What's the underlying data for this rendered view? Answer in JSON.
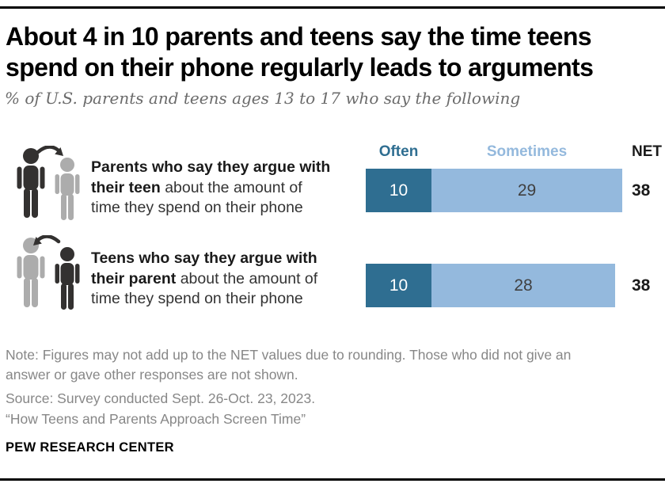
{
  "header": {
    "title_line1": "About 4 in 10 parents and teens say the time teens",
    "title_line2": "spend on their phone regularly leads to arguments",
    "subtitle": "% of U.S. parents and teens ages 13 to 17 who say the following"
  },
  "columns": {
    "often": "Often",
    "sometimes": "Sometimes",
    "net": "NET"
  },
  "rows": [
    {
      "line1": "Parents who say they argue with",
      "line2_bold": "their teen",
      "line2_rest": " about the amount of",
      "line3": "time they spend on their phone",
      "often": 10,
      "sometimes": 29,
      "net": 38
    },
    {
      "line1": "Teens who say they argue with",
      "line2_bold": "their parent",
      "line2_rest": " about the amount of",
      "line3": "time they spend on their phone",
      "often": 10,
      "sometimes": 28,
      "net": 38
    }
  ],
  "footer": {
    "note_line1": "Note: Figures may not add up to the NET values due to rounding. Those who did not give an",
    "note_line2": "answer or gave other responses are not shown.",
    "source": "Source: Survey conducted Sept. 26-Oct. 23, 2023.",
    "quote": "“How Teens and Parents Approach Screen Time”",
    "brand": "PEW RESEARCH CENTER"
  },
  "colors": {
    "often_blue": "#2F6E91",
    "sometimes_blue": "#94B9DD",
    "person_dark": "#333130",
    "person_gray": "#ACACAC"
  },
  "chart_data": {
    "type": "bar",
    "orientation": "horizontal",
    "stacked": true,
    "title": "About 4 in 10 parents and teens say the time teens spend on their phone regularly leads to arguments",
    "subtitle": "% of U.S. parents and teens ages 13 to 17 who say the following",
    "categories": [
      "Parents who say they argue with their teen about the amount of time they spend on their phone",
      "Teens who say they argue with their parent about the amount of time they spend on their phone"
    ],
    "series": [
      {
        "name": "Often",
        "values": [
          10,
          10
        ],
        "color": "#2F6E91"
      },
      {
        "name": "Sometimes",
        "values": [
          29,
          28
        ],
        "color": "#94B9DD"
      }
    ],
    "net_column_label": "NET",
    "net_values": [
      38,
      38
    ],
    "xlim": [
      0,
      40
    ],
    "legend_position": "top",
    "grid": false
  }
}
